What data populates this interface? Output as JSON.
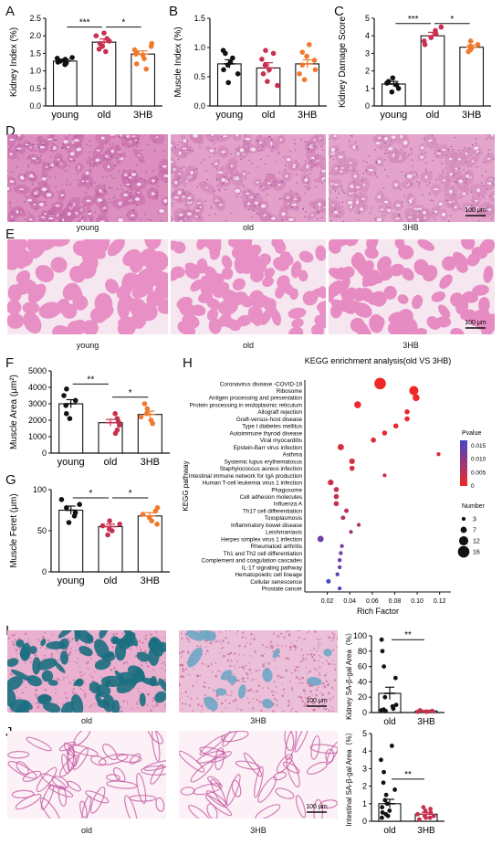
{
  "panels": {
    "A": "A",
    "B": "B",
    "C": "C",
    "D": "D",
    "E": "E",
    "F": "F",
    "G": "G",
    "H": "H",
    "I": "I",
    "J": "J"
  },
  "groups3": [
    "young",
    "old",
    "3HB"
  ],
  "groups2": [
    "old",
    "3HB"
  ],
  "colors": {
    "young": "#111111",
    "old": "#c8304f",
    "hb3": "#ef7a2e",
    "stainPink": "#e8a7cf",
    "stainBlue": "#1e7c8c"
  },
  "scalebar": "100 μm",
  "chart_data": [
    {
      "id": "A",
      "type": "bar",
      "ylabel": "Kidney Index (%)",
      "ylim": [
        0,
        2.5
      ],
      "yticks": [
        "0.0",
        "0.5",
        "1.0",
        "1.5",
        "2.0",
        "2.5"
      ],
      "categories": [
        "young",
        "old",
        "3HB"
      ],
      "values": [
        1.28,
        1.82,
        1.48
      ],
      "errors": [
        0.05,
        0.09,
        0.09
      ],
      "points": [
        [
          1.18,
          1.22,
          1.25,
          1.28,
          1.3,
          1.33,
          1.36,
          1.38
        ],
        [
          1.55,
          1.7,
          1.78,
          1.85,
          1.92,
          2.0,
          2.08,
          1.62
        ],
        [
          1.05,
          1.2,
          1.35,
          1.45,
          1.52,
          1.6,
          1.7,
          1.78,
          1.48
        ]
      ],
      "sig": [
        {
          "from": 0,
          "to": 1,
          "label": "***",
          "level": 2.25
        },
        {
          "from": 1,
          "to": 2,
          "label": "*",
          "level": 2.25
        }
      ]
    },
    {
      "id": "B",
      "type": "bar",
      "ylabel": "Muscle Index (%)",
      "ylim": [
        0,
        1.5
      ],
      "yticks": [
        "0.0",
        "0.5",
        "1.0",
        "1.5"
      ],
      "categories": [
        "young",
        "old",
        "3HB"
      ],
      "values": [
        0.72,
        0.65,
        0.72
      ],
      "errors": [
        0.07,
        0.09,
        0.07
      ],
      "points": [
        [
          0.4,
          0.55,
          0.62,
          0.7,
          0.75,
          0.82,
          0.9,
          0.95
        ],
        [
          0.35,
          0.42,
          0.55,
          0.62,
          0.7,
          0.8,
          0.9,
          0.95
        ],
        [
          0.45,
          0.55,
          0.62,
          0.7,
          0.78,
          0.85,
          0.92,
          1.05
        ]
      ],
      "sig": []
    },
    {
      "id": "C",
      "type": "bar",
      "ylabel": "Kidney Damage Score",
      "ylim": [
        0,
        5
      ],
      "yticks": [
        "0",
        "1",
        "2",
        "3",
        "4",
        "5"
      ],
      "categories": [
        "young",
        "old",
        "3HB"
      ],
      "values": [
        1.25,
        4.0,
        3.35
      ],
      "errors": [
        0.15,
        0.2,
        0.12
      ],
      "points": [
        [
          0.8,
          1.0,
          1.2,
          1.3,
          1.4,
          1.6
        ],
        [
          3.5,
          3.7,
          3.9,
          4.1,
          4.3,
          4.5
        ],
        [
          3.1,
          3.2,
          3.3,
          3.4,
          3.5,
          3.7
        ]
      ],
      "sig": [
        {
          "from": 0,
          "to": 1,
          "label": "***",
          "level": 4.7
        },
        {
          "from": 1,
          "to": 2,
          "label": "*",
          "level": 4.7
        }
      ]
    },
    {
      "id": "F",
      "type": "bar",
      "ylabel": "Muscle Area (μm²)",
      "ylim": [
        0,
        5000
      ],
      "yticks": [
        "0",
        "1000",
        "2000",
        "3000",
        "4000",
        "5000"
      ],
      "categories": [
        "young",
        "old",
        "3HB"
      ],
      "values": [
        3000,
        1850,
        2350
      ],
      "errors": [
        250,
        200,
        200
      ],
      "points": [
        [
          2100,
          2400,
          2900,
          3200,
          3500,
          3900
        ],
        [
          1200,
          1400,
          1700,
          1900,
          2100,
          2400
        ],
        [
          1800,
          2000,
          2200,
          2400,
          2700,
          3000
        ]
      ],
      "sig": [
        {
          "from": 0,
          "to": 1,
          "label": "**",
          "level": 4200
        },
        {
          "from": 1,
          "to": 2,
          "label": "*",
          "level": 3400
        }
      ]
    },
    {
      "id": "G",
      "type": "bar",
      "ylabel": "Muscle Feret (μm)",
      "ylim": [
        0,
        100
      ],
      "yticks": [
        "0",
        "50",
        "100"
      ],
      "categories": [
        "young",
        "old",
        "3HB"
      ],
      "values": [
        75,
        55,
        68
      ],
      "errors": [
        5,
        3,
        4
      ],
      "points": [
        [
          60,
          68,
          72,
          78,
          82,
          88
        ],
        [
          45,
          50,
          52,
          56,
          58,
          62
        ],
        [
          58,
          62,
          66,
          70,
          74,
          78
        ]
      ],
      "sig": [
        {
          "from": 0,
          "to": 1,
          "label": "*",
          "level": 90
        },
        {
          "from": 1,
          "to": 2,
          "label": "*",
          "level": 90
        }
      ]
    },
    {
      "id": "H",
      "type": "scatter",
      "title": "KEGG enrichment analysis(old VS 3HB)",
      "xlabel": "Rich Factor",
      "ylabel": "KEGG pathway",
      "xlim": [
        0,
        0.13
      ],
      "xticks": [
        "0.02",
        "0.04",
        "0.06",
        "0.08",
        "0.10",
        "0.12"
      ],
      "legend_p_title": "Pvalue",
      "legend_p_ticks": [
        "0.015",
        "0.010",
        "0.005",
        "0"
      ],
      "legend_n_title": "Number",
      "legend_n_ticks": [
        "3",
        "7",
        "12",
        "16"
      ],
      "pathways": [
        {
          "name": "Coronavirus disease -COVID-19",
          "x": 0.067,
          "n": 16,
          "p": 0.0
        },
        {
          "name": "Ribosome",
          "x": 0.097,
          "n": 12,
          "p": 0.0
        },
        {
          "name": "Antigen processing and presentation",
          "x": 0.099,
          "n": 8,
          "p": 0.0
        },
        {
          "name": "Protein processing in endoplasmic reticulum",
          "x": 0.047,
          "n": 8,
          "p": 0.0005
        },
        {
          "name": "Allograft rejection",
          "x": 0.091,
          "n": 5,
          "p": 0.0005
        },
        {
          "name": "Graft-versus-host disease",
          "x": 0.091,
          "n": 5,
          "p": 0.0005
        },
        {
          "name": "Type I diabetes mellitus",
          "x": 0.081,
          "n": 5,
          "p": 0.0007
        },
        {
          "name": "Autoimmune thyroid disease",
          "x": 0.071,
          "n": 5,
          "p": 0.001
        },
        {
          "name": "Viral myocarditis",
          "x": 0.061,
          "n": 5,
          "p": 0.0015
        },
        {
          "name": "Epstein-Barr virus infection",
          "x": 0.032,
          "n": 7,
          "p": 0.002
        },
        {
          "name": "Asthma",
          "x": 0.119,
          "n": 3,
          "p": 0.002
        },
        {
          "name": "Systemic lupus erythematosus",
          "x": 0.042,
          "n": 6,
          "p": 0.0025
        },
        {
          "name": "Staphylococcus aureus infection",
          "x": 0.042,
          "n": 5,
          "p": 0.003
        },
        {
          "name": "Intestinal immune network for IgA production",
          "x": 0.071,
          "n": 3,
          "p": 0.003
        },
        {
          "name": "Human T-cell leukemia virus 1 infection",
          "x": 0.023,
          "n": 6,
          "p": 0.003
        },
        {
          "name": "Phagosome",
          "x": 0.028,
          "n": 5,
          "p": 0.004
        },
        {
          "name": "Cell adhesion molecules",
          "x": 0.028,
          "n": 5,
          "p": 0.004
        },
        {
          "name": "Influenza A",
          "x": 0.028,
          "n": 5,
          "p": 0.004
        },
        {
          "name": "Th17 cell differentiation",
          "x": 0.037,
          "n": 4,
          "p": 0.005
        },
        {
          "name": "Toxoplasmosis",
          "x": 0.034,
          "n": 4,
          "p": 0.006
        },
        {
          "name": "Inflammatory bowel disease",
          "x": 0.048,
          "n": 3,
          "p": 0.007
        },
        {
          "name": "Leishmaniasis",
          "x": 0.041,
          "n": 3,
          "p": 0.008
        },
        {
          "name": "Herpes simplex virus 1 infection",
          "x": 0.014,
          "n": 7,
          "p": 0.012
        },
        {
          "name": "Rheumatoid arthritis",
          "x": 0.033,
          "n": 3,
          "p": 0.011
        },
        {
          "name": "Th1 and Th2 cell differentiation",
          "x": 0.032,
          "n": 3,
          "p": 0.012
        },
        {
          "name": "Complement and coagulation cascades",
          "x": 0.031,
          "n": 3,
          "p": 0.013
        },
        {
          "name": "IL-17 signaling pathway",
          "x": 0.031,
          "n": 3,
          "p": 0.013
        },
        {
          "name": "Hematopoietic cell lineage",
          "x": 0.029,
          "n": 3,
          "p": 0.014
        },
        {
          "name": "Cellular senescence",
          "x": 0.021,
          "n": 4,
          "p": 0.016
        },
        {
          "name": "Prostate cancer",
          "x": 0.031,
          "n": 3,
          "p": 0.016
        }
      ]
    },
    {
      "id": "I",
      "type": "bar",
      "ylabel": "Kidney SA-β-gal Area（%）",
      "ylim": [
        0,
        100
      ],
      "yticks": [
        "0",
        "20",
        "40",
        "60",
        "80",
        "100"
      ],
      "categories": [
        "old",
        "3HB"
      ],
      "values": [
        25,
        2
      ],
      "errors": [
        8,
        1
      ],
      "points": [
        [
          2,
          3,
          4,
          5,
          6,
          8,
          10,
          20,
          45,
          60,
          95,
          80
        ],
        [
          1,
          1,
          2,
          2,
          3,
          1
        ]
      ],
      "sig": [
        {
          "from": 0,
          "to": 1,
          "label": "**",
          "level": 95
        }
      ]
    },
    {
      "id": "J",
      "type": "bar",
      "ylabel": "Intestinal SA-β-gal Area（%）",
      "ylim": [
        0,
        5
      ],
      "yticks": [
        "0",
        "1",
        "2",
        "3",
        "4",
        "5"
      ],
      "categories": [
        "old",
        "3HB"
      ],
      "values": [
        1.0,
        0.4
      ],
      "errors": [
        0.25,
        0.1
      ],
      "points": [
        [
          0.2,
          0.4,
          0.6,
          0.8,
          1.0,
          1.2,
          1.5,
          1.8,
          2.2,
          2.8,
          3.5,
          4.3,
          0.5,
          0.3
        ],
        [
          0.1,
          0.2,
          0.3,
          0.4,
          0.5,
          0.6,
          0.7,
          0.8,
          0.3,
          0.2
        ]
      ],
      "sig": [
        {
          "from": 0,
          "to": 1,
          "label": "**",
          "level": 2.4
        }
      ]
    }
  ]
}
